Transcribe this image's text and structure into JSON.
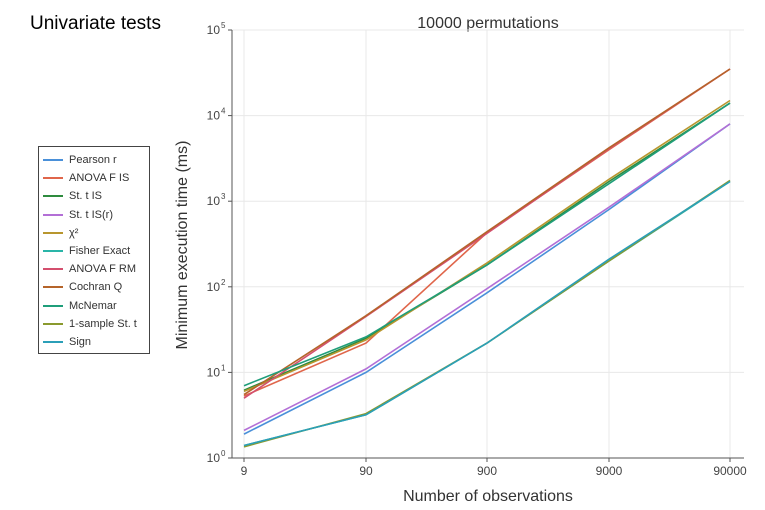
{
  "side_title": "Univariate tests",
  "chart_data": {
    "type": "line",
    "title": "10000 permutations",
    "xlabel": "Number of observations",
    "ylabel": "Minimum execution time (ms)",
    "x_scale": "log",
    "y_scale": "log",
    "x": [
      9,
      90,
      900,
      9000,
      90000
    ],
    "x_tick_labels": [
      "9",
      "90",
      "900",
      "9000",
      "90000"
    ],
    "ylim": [
      1,
      100000
    ],
    "y_ticks": [
      {
        "base": "10",
        "exp": "0"
      },
      {
        "base": "10",
        "exp": "1"
      },
      {
        "base": "10",
        "exp": "2"
      },
      {
        "base": "10",
        "exp": "3"
      },
      {
        "base": "10",
        "exp": "4"
      },
      {
        "base": "10",
        "exp": "5"
      }
    ],
    "grid": true,
    "legend_position": "left",
    "series": [
      {
        "name": "Pearson r",
        "color": "#4a90d9",
        "values": [
          1.9,
          10,
          85,
          800,
          8000
        ]
      },
      {
        "name": "ANOVA F IS",
        "color": "#e0664b",
        "values": [
          5.3,
          22,
          430,
          4000,
          35000
        ]
      },
      {
        "name": "St. t IS",
        "color": "#2e8b3e",
        "values": [
          6.2,
          25,
          180,
          1700,
          14000
        ]
      },
      {
        "name": "St. t IS(r)",
        "color": "#b36fd6",
        "values": [
          2.1,
          11,
          95,
          850,
          8000
        ]
      },
      {
        "name": "χ²",
        "color": "#b8962e",
        "values": [
          6.0,
          24,
          190,
          1800,
          15000
        ]
      },
      {
        "name": "Fisher Exact",
        "color": "#2ab5a8",
        "values": [
          1.4,
          3.2,
          22,
          200,
          1700
        ]
      },
      {
        "name": "ANOVA F RM",
        "color": "#d44f6e",
        "values": [
          5.0,
          45,
          420,
          4100,
          35000
        ]
      },
      {
        "name": "Cochran Q",
        "color": "#b5642a",
        "values": [
          5.5,
          46,
          440,
          4200,
          35000
        ]
      },
      {
        "name": "McNemar",
        "color": "#1f9e7a",
        "values": [
          7.0,
          26,
          180,
          1600,
          14000
        ]
      },
      {
        "name": "1-sample St. t",
        "color": "#8a9a2e",
        "values": [
          1.35,
          3.3,
          22,
          200,
          1750
        ]
      },
      {
        "name": "Sign",
        "color": "#2b9fb8",
        "values": [
          1.4,
          3.2,
          22,
          210,
          1700
        ]
      }
    ]
  }
}
